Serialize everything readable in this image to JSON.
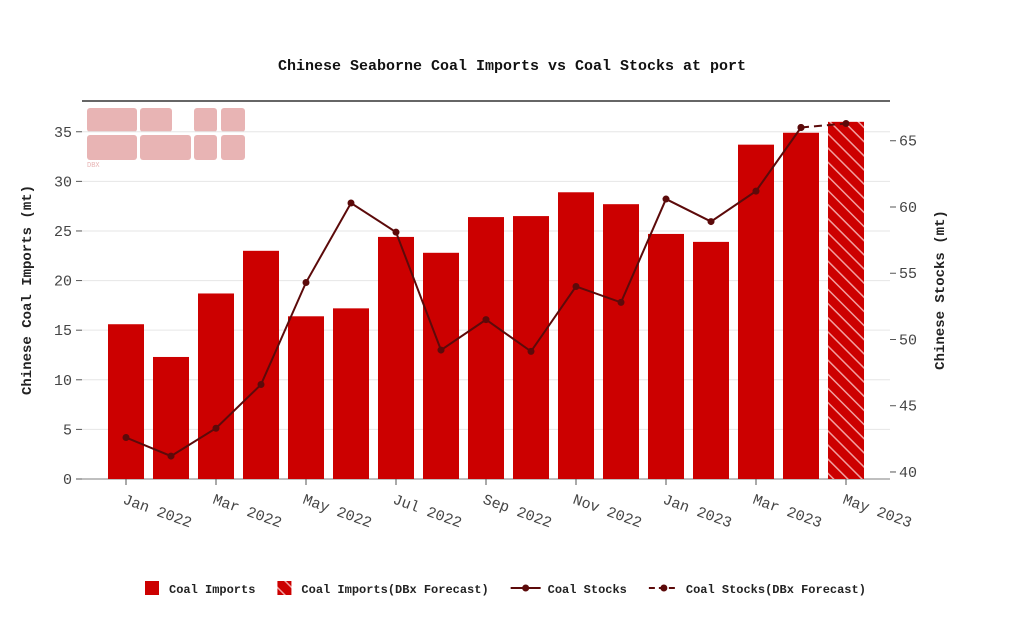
{
  "chart_data": {
    "type": "bar",
    "title": "Chinese Seaborne Coal Imports vs Coal Stocks at port",
    "ylabel": "Chinese Coal Imports (mt)",
    "y2label": "Chinese Stocks (mt)",
    "logo_text": "DBX",
    "categories": [
      "Jan 2022",
      null,
      "Mar 2022",
      null,
      "May 2022",
      null,
      "Jul 2022",
      null,
      "Sep 2022",
      null,
      "Nov 2022",
      null,
      "Jan 2023",
      null,
      "Mar 2023",
      null,
      "May 2023"
    ],
    "ylim": [
      0,
      38.1
    ],
    "yticks": [
      0,
      5,
      10,
      15,
      20,
      25,
      30,
      35
    ],
    "y2lim": [
      39.47,
      68.0
    ],
    "y2ticks": [
      40,
      45,
      50,
      55,
      60,
      65
    ],
    "grid": true,
    "legend": "bottom",
    "series": [
      {
        "name": "Coal Imports",
        "type": "bar",
        "color": "#cc0000",
        "values": [
          15.6,
          12.3,
          18.7,
          23.0,
          16.4,
          17.2,
          24.4,
          22.8,
          26.4,
          26.5,
          28.9,
          27.7,
          24.7,
          23.9,
          33.7,
          34.9,
          null
        ]
      },
      {
        "name": "Coal Imports(DBx Forecast)",
        "type": "bar",
        "color": "#cc0000",
        "hatch": true,
        "values": [
          null,
          null,
          null,
          null,
          null,
          null,
          null,
          null,
          null,
          null,
          null,
          null,
          null,
          null,
          null,
          null,
          36.0
        ]
      },
      {
        "name": "Coal Stocks",
        "type": "line",
        "axis": "y2",
        "color": "#5c0a0a",
        "values": [
          42.6,
          41.2,
          43.3,
          46.6,
          54.3,
          60.3,
          58.1,
          49.2,
          51.5,
          49.1,
          54.0,
          52.8,
          60.6,
          58.9,
          61.2,
          66.0,
          null
        ]
      },
      {
        "name": "Coal Stocks(DBx Forecast)",
        "type": "line",
        "axis": "y2",
        "color": "#5c0a0a",
        "dashed": true,
        "values": [
          null,
          null,
          null,
          null,
          null,
          null,
          null,
          null,
          null,
          null,
          null,
          null,
          null,
          null,
          null,
          66.0,
          66.3
        ]
      }
    ]
  }
}
